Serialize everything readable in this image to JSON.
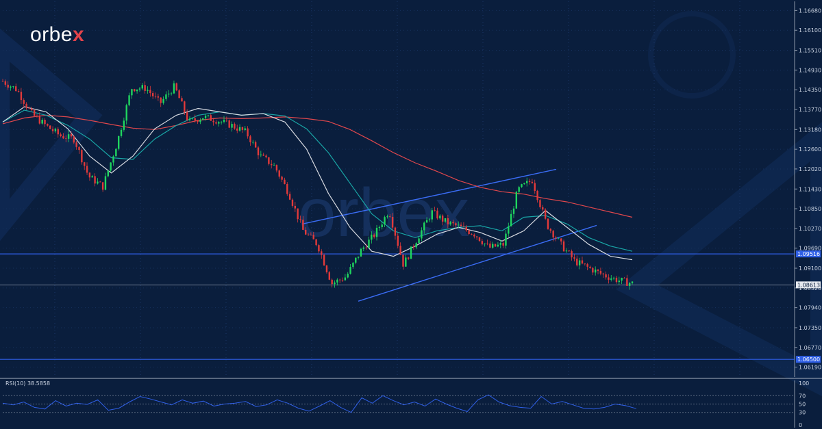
{
  "brand": {
    "logo_prefix": "orbe",
    "logo_x": "x",
    "watermark": "orbex",
    "accent_color": "#e2434b"
  },
  "chart_data": {
    "type": "candlestick",
    "price_axis": {
      "ticks": [
        "1.16680",
        "1.16100",
        "1.15510",
        "1.14930",
        "1.14350",
        "1.13770",
        "1.13180",
        "1.12600",
        "1.12020",
        "1.11430",
        "1.10850",
        "1.10270",
        "1.09690",
        "1.09100",
        "1.08520",
        "1.07940",
        "1.07350",
        "1.06770",
        "1.06190"
      ],
      "range": [
        1.059,
        1.1695
      ]
    },
    "rsi_axis": {
      "ticks": [
        "100",
        "70",
        "50",
        "30",
        "0"
      ],
      "range": [
        0,
        100
      ]
    },
    "horizontal_lines": [
      {
        "price": 1.0952,
        "label": "1.09516",
        "color": "#2f5fe6"
      },
      {
        "price": 1.0642,
        "label": "1.06500",
        "color": "#2f5fe6"
      },
      {
        "price": 1.0861,
        "label": "1.08613",
        "color": "#9aa4b4"
      }
    ],
    "channel_lines": [
      {
        "x": [
          0.378,
          0.699
        ],
        "y": [
          1.104,
          1.1201
        ]
      },
      {
        "x": [
          0.449,
          0.75
        ],
        "y": [
          1.0813,
          1.1036
        ]
      }
    ],
    "series": [
      {
        "type": "ma",
        "color": "#e0474c",
        "values": [
          1.1335,
          1.1352,
          1.136,
          1.1355,
          1.1345,
          1.1333,
          1.1322,
          1.1318,
          1.133,
          1.1345,
          1.1352,
          1.135,
          1.1352,
          1.1355,
          1.135,
          1.1342,
          1.1318,
          1.1285,
          1.125,
          1.122,
          1.1195,
          1.1168,
          1.1148,
          1.1135,
          1.1128,
          1.1115,
          1.1105,
          1.109,
          1.1075,
          1.106
        ]
      },
      {
        "type": "ma",
        "color": "#19a5a5",
        "values": [
          1.134,
          1.1375,
          1.136,
          1.133,
          1.129,
          1.1235,
          1.123,
          1.129,
          1.133,
          1.136,
          1.137,
          1.136,
          1.1365,
          1.1358,
          1.132,
          1.125,
          1.116,
          1.107,
          1.102,
          1.1,
          1.102,
          1.103,
          1.1035,
          1.102,
          1.106,
          1.1065,
          1.104,
          1.1,
          1.0975,
          1.096
        ]
      },
      {
        "type": "ma",
        "color": "#d6d9e0",
        "values": [
          1.134,
          1.1385,
          1.137,
          1.132,
          1.124,
          1.119,
          1.124,
          1.132,
          1.136,
          1.138,
          1.137,
          1.136,
          1.1365,
          1.134,
          1.126,
          1.113,
          1.103,
          1.096,
          1.0945,
          1.0975,
          1.101,
          1.103,
          1.1015,
          1.099,
          1.102,
          1.108,
          1.103,
          1.098,
          1.0945,
          1.0935
        ]
      },
      {
        "type": "close",
        "values": [
          1.146,
          1.1435,
          1.1365,
          1.133,
          1.13,
          1.129,
          1.118,
          1.115,
          1.128,
          1.144,
          1.144,
          1.1395,
          1.1445,
          1.134,
          1.1355,
          1.1345,
          1.133,
          1.131,
          1.124,
          1.121,
          1.113,
          1.102,
          1.098,
          1.0865,
          1.0885,
          1.096,
          1.101,
          1.108,
          1.092,
          1.1,
          1.1075,
          1.1045,
          1.103,
          1.101,
          1.097,
          1.098,
          1.114,
          1.117,
          1.104,
          1.098,
          1.093,
          1.091,
          1.089,
          1.0875,
          1.0865
        ]
      }
    ],
    "rsi": {
      "label": "RSI(10) 38.5858",
      "levels": [
        70,
        50,
        30
      ],
      "values": [
        52,
        48,
        55,
        42,
        38,
        58,
        45,
        52,
        49,
        60,
        35,
        40,
        55,
        68,
        62,
        55,
        48,
        60,
        52,
        57,
        45,
        50,
        52,
        56,
        44,
        48,
        60,
        52,
        40,
        33,
        45,
        58,
        42,
        30,
        65,
        52,
        70,
        58,
        48,
        55,
        45,
        62,
        50,
        40,
        32,
        60,
        72,
        55,
        46,
        42,
        40,
        68,
        50,
        56,
        48,
        40,
        38,
        42,
        50,
        46,
        39
      ]
    }
  }
}
